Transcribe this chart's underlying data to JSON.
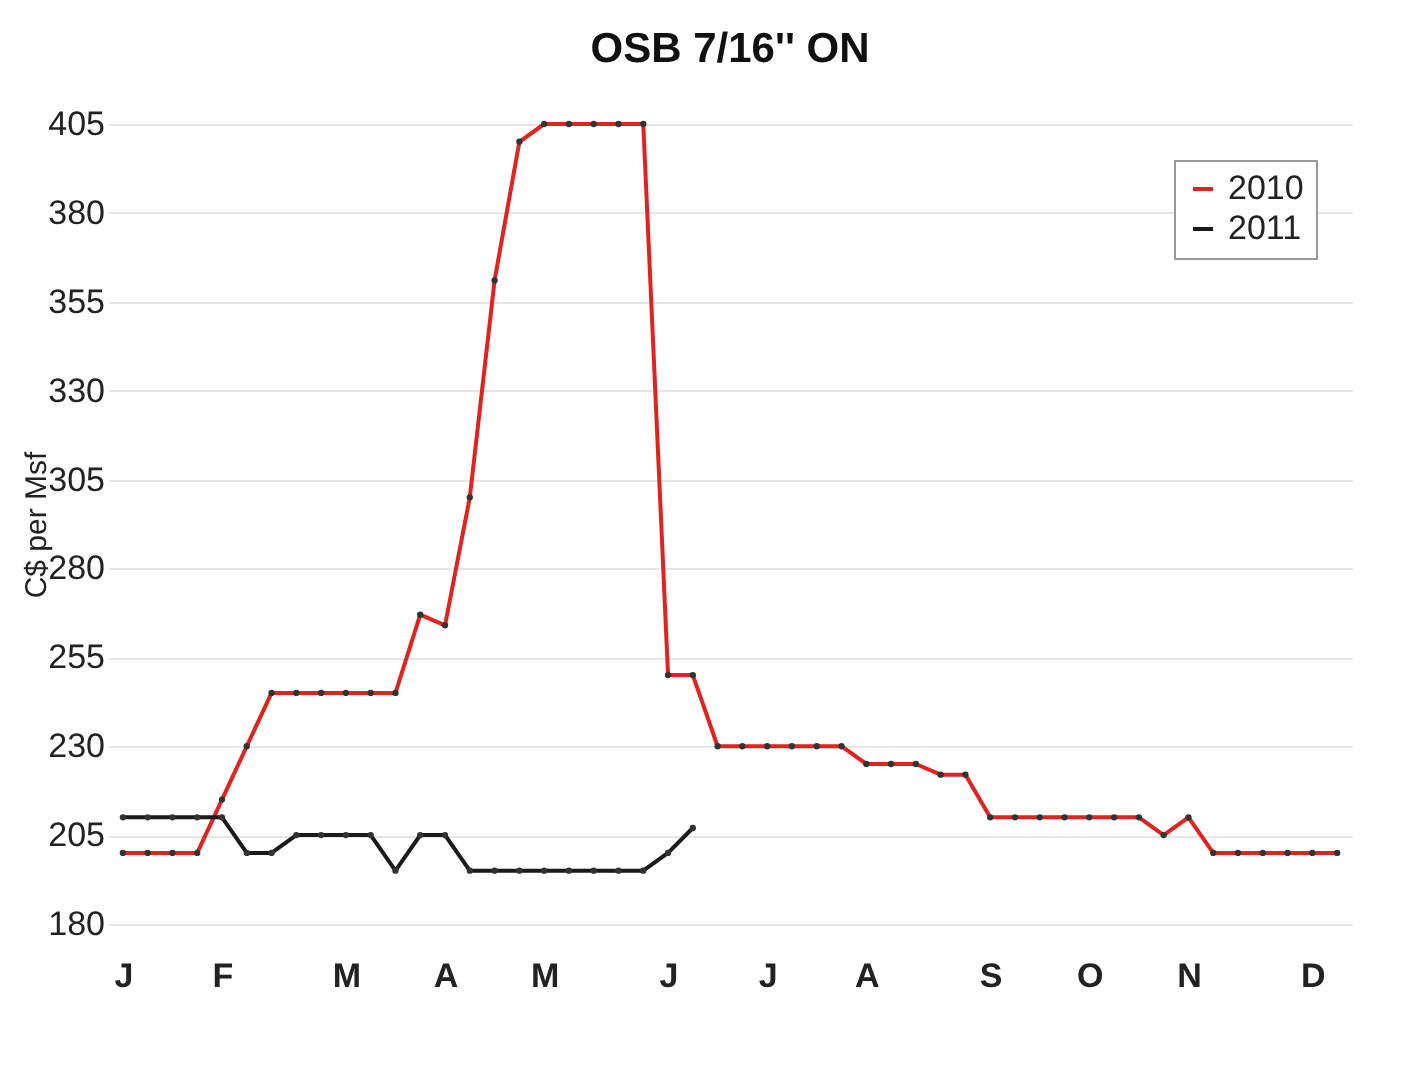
{
  "chart_data": {
    "type": "line",
    "title": "OSB 7/16'' ON",
    "ylabel": "C$ per Msf",
    "categories": [
      "J",
      null,
      null,
      null,
      "F",
      null,
      null,
      null,
      null,
      "M",
      null,
      null,
      null,
      "A",
      null,
      null,
      null,
      "M",
      null,
      null,
      null,
      null,
      "J",
      null,
      null,
      null,
      "J",
      null,
      null,
      null,
      "A",
      null,
      null,
      null,
      null,
      "S",
      null,
      null,
      null,
      "O",
      null,
      null,
      null,
      "N",
      null,
      null,
      null,
      null,
      "D",
      null
    ],
    "series": [
      {
        "name": "2010",
        "color": "#e0231f",
        "values": [
          200,
          200,
          200,
          200,
          215,
          230,
          245,
          245,
          245,
          245,
          245,
          245,
          267,
          264,
          300,
          361,
          400,
          405,
          405,
          405,
          405,
          405,
          250,
          250,
          230,
          230,
          230,
          230,
          230,
          230,
          225,
          225,
          225,
          222,
          222,
          210,
          210,
          210,
          210,
          210,
          210,
          210,
          205,
          210,
          200,
          200,
          200,
          200,
          200,
          200
        ]
      },
      {
        "name": "2011",
        "color": "#1a1a1a",
        "values": [
          210,
          210,
          210,
          210,
          210,
          200,
          200,
          205,
          205,
          205,
          205,
          195,
          205,
          205,
          195,
          195,
          195,
          195,
          195,
          195,
          195,
          195,
          200,
          207,
          null,
          null,
          null,
          null,
          null,
          null,
          null,
          null,
          null,
          null,
          null,
          null,
          null,
          null,
          null,
          null,
          null,
          null,
          null,
          null,
          null,
          null,
          null,
          null,
          null,
          null
        ]
      }
    ],
    "ylim": [
      180,
      405
    ],
    "yticks": [
      180,
      205,
      230,
      255,
      280,
      305,
      330,
      355,
      380,
      405
    ],
    "grid": "y",
    "legend": "top right",
    "marker": "circle",
    "line_style": "solid"
  }
}
